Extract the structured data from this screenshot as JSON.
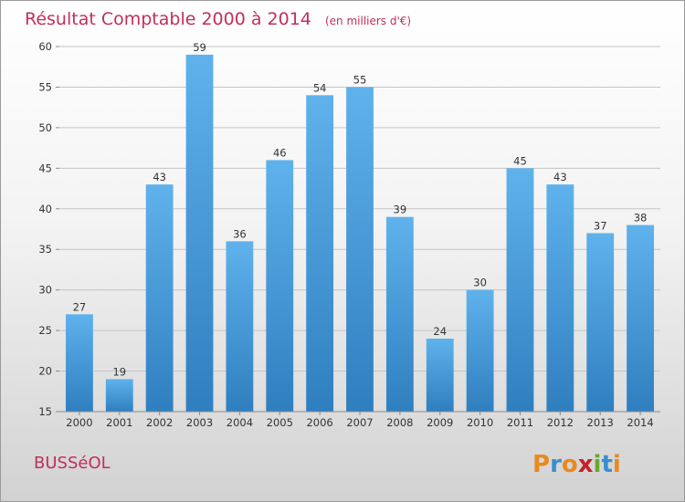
{
  "chart_data": {
    "type": "bar",
    "title": "Résultat Comptable 2000 à 2014",
    "subtitle": "(en milliers d'€)",
    "categories": [
      "2000",
      "2001",
      "2002",
      "2003",
      "2004",
      "2005",
      "2006",
      "2007",
      "2008",
      "2009",
      "2010",
      "2011",
      "2012",
      "2013",
      "2014"
    ],
    "values": [
      27,
      19,
      43,
      59,
      36,
      46,
      54,
      55,
      39,
      24,
      30,
      45,
      43,
      37,
      38
    ],
    "ylim": [
      15,
      60
    ],
    "yticks": [
      15,
      20,
      25,
      30,
      35,
      40,
      45,
      50,
      55,
      60
    ],
    "grid": true,
    "bar_color_top": "#5fb2ec",
    "bar_color_bottom": "#2f7fc0"
  },
  "footer": {
    "city": "BUSSéOL",
    "brand": "Proxiti"
  },
  "colors": {
    "title": "#c0305a",
    "brand_letters": [
      "#e88a20",
      "#3a8ed0",
      "#e88a20",
      "#c8202a",
      "#6aa82a",
      "#3a8ed0",
      "#e88a20"
    ]
  }
}
